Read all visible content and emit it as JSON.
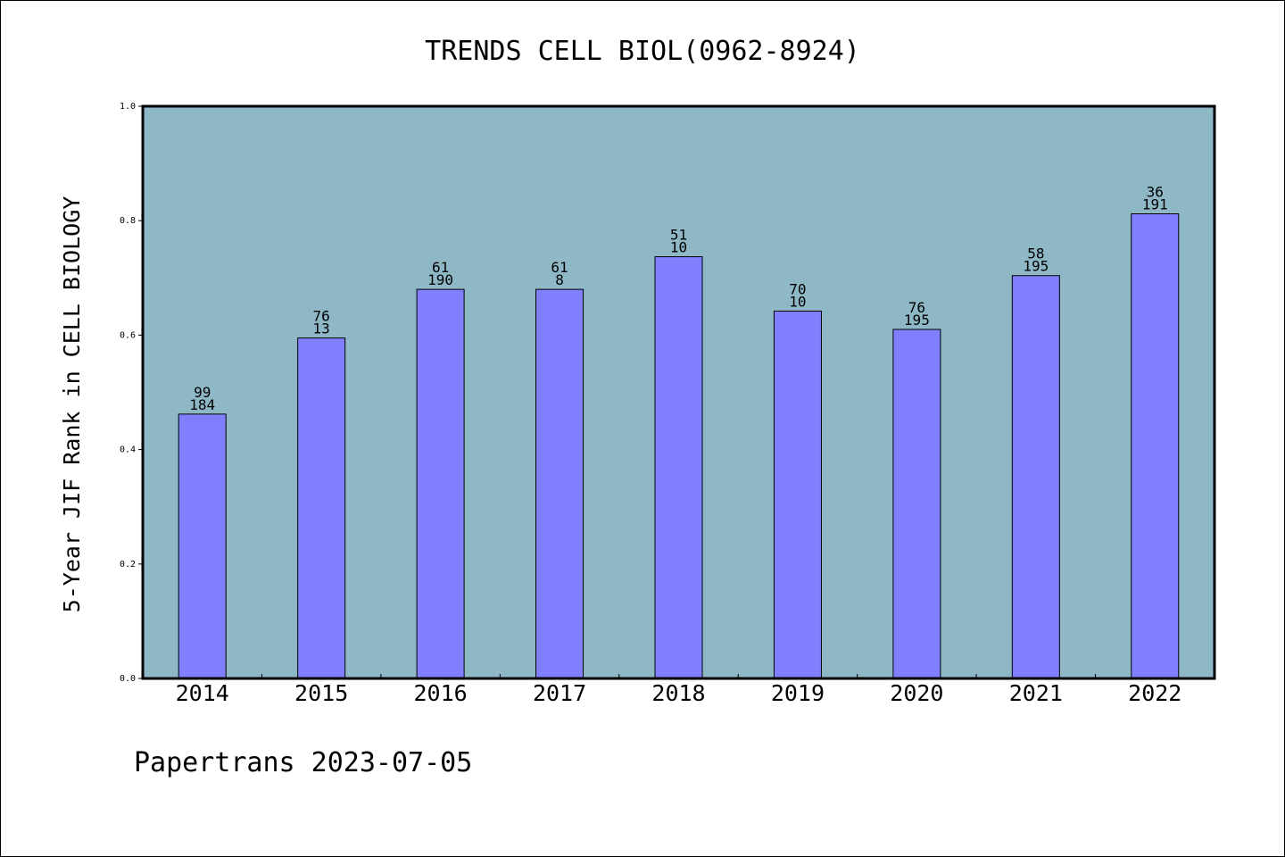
{
  "chart_data": {
    "type": "bar",
    "title": "TRENDS CELL BIOL(0962-8924)",
    "ylabel": "5-Year JIF Rank in CELL BIOLOGY",
    "xlabel": "",
    "ylim": [
      0,
      1.0
    ],
    "yticks": [
      "0.0",
      "0.2",
      "0.4",
      "0.6",
      "0.8",
      "1.0"
    ],
    "categories": [
      "2014",
      "2015",
      "2016",
      "2017",
      "2018",
      "2019",
      "2020",
      "2021",
      "2022"
    ],
    "values": [
      0.462,
      0.595,
      0.68,
      0.68,
      0.737,
      0.642,
      0.61,
      0.704,
      0.812
    ],
    "labels_top": [
      "99",
      "76",
      "61",
      "61",
      "51",
      "70",
      "76",
      "58",
      "36"
    ],
    "labels_bottom": [
      "184",
      "13",
      "190",
      "8",
      "10",
      "10",
      "195",
      "195",
      "191"
    ],
    "grid": false,
    "colors": {
      "plot_background": "#8fb8c7",
      "bar_fill": "#8080ff",
      "bar_stroke": "#000000"
    }
  },
  "footer": {
    "text": "Papertrans 2023-07-05"
  }
}
